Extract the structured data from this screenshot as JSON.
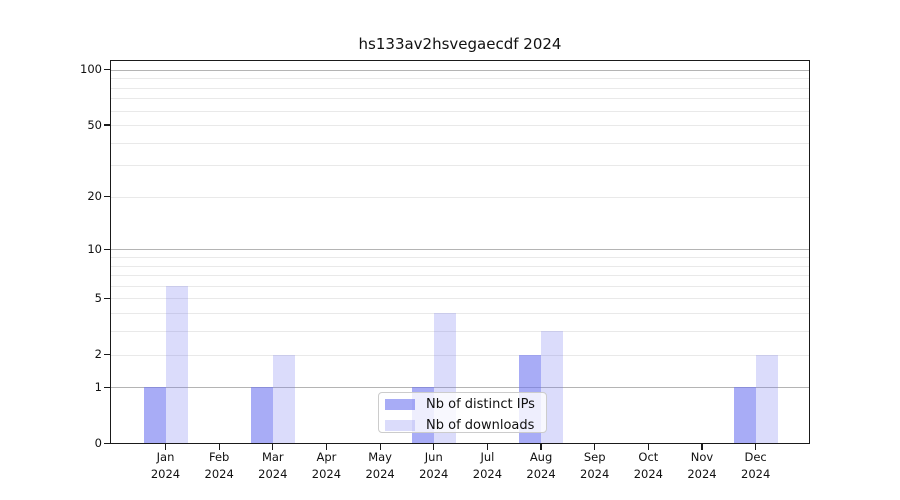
{
  "chart_data": {
    "type": "bar",
    "title": "hs133av2hsvegaecdf 2024",
    "categories": [
      {
        "month": "Jan",
        "year": "2024"
      },
      {
        "month": "Feb",
        "year": "2024"
      },
      {
        "month": "Mar",
        "year": "2024"
      },
      {
        "month": "Apr",
        "year": "2024"
      },
      {
        "month": "May",
        "year": "2024"
      },
      {
        "month": "Jun",
        "year": "2024"
      },
      {
        "month": "Jul",
        "year": "2024"
      },
      {
        "month": "Aug",
        "year": "2024"
      },
      {
        "month": "Sep",
        "year": "2024"
      },
      {
        "month": "Oct",
        "year": "2024"
      },
      {
        "month": "Nov",
        "year": "2024"
      },
      {
        "month": "Dec",
        "year": "2024"
      }
    ],
    "series": [
      {
        "name": "Nb of distinct IPs",
        "values": [
          1,
          0,
          1,
          0,
          0,
          1,
          0,
          2,
          0,
          0,
          0,
          1
        ],
        "color": "rgba(110,117,240,0.6)"
      },
      {
        "name": "Nb of downloads",
        "values": [
          6,
          0,
          2,
          0,
          0,
          4,
          0,
          3,
          0,
          0,
          0,
          2
        ],
        "color": "rgba(110,117,240,0.25)"
      }
    ],
    "yscale": "symlog",
    "ylim": [
      0,
      113
    ],
    "yticks": [
      0,
      1,
      2,
      5,
      10,
      20,
      50,
      100
    ],
    "major_gridlines": [
      1,
      10,
      100
    ],
    "minor_gridlines": [
      2,
      3,
      4,
      5,
      6,
      7,
      8,
      9,
      20,
      30,
      40,
      50,
      60,
      70,
      80,
      90
    ],
    "grid": true,
    "legend_position": "lower center",
    "colors": {
      "major_grid": "#b4b4b4",
      "minor_grid": "#e9e9e9",
      "spine": "#1a1a1a",
      "text": "#111111",
      "legend_border": "#cccccc",
      "legend_bg": "rgba(255,255,255,0.8)"
    }
  }
}
